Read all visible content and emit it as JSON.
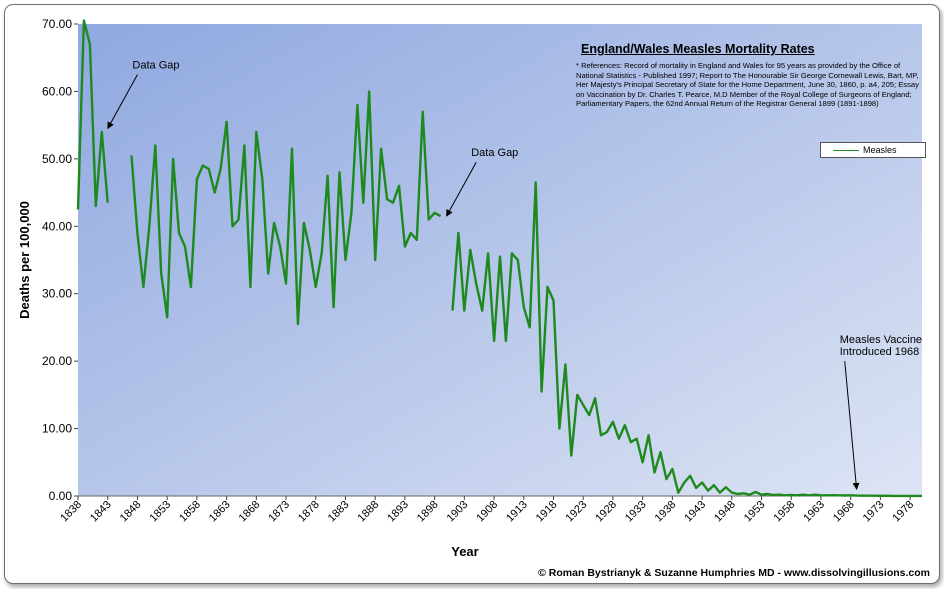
{
  "chart_data": {
    "type": "line",
    "title": "England/Wales Measles Mortality Rates",
    "references": "* References: Record of mortality in England and Wales for 95 years as provided by the Office of National Statistics - Published 1997; Report to The Honourable Sir George Cornewall Lewis, Bart, MP, Her Majesty's Principal Secretary of State for the Home Department, June 30, 1860, p. a4, 205; Essay on Vaccination by Dr. Charles T. Pearce, M.D Member of the Royal College of Surgeons of England; Parliamentary Papers, the 62nd Annual Return of the Registrar General 1899 (1891-1898)",
    "xlabel": "Year",
    "ylabel": "Deaths per 100,000",
    "ylim": [
      0,
      70
    ],
    "xlim": [
      1838,
      1980
    ],
    "y_ticks": [
      "0.00",
      "10.00",
      "20.00",
      "30.00",
      "40.00",
      "50.00",
      "60.00",
      "70.00"
    ],
    "x_ticks": [
      "1838",
      "1843",
      "1848",
      "1853",
      "1858",
      "1863",
      "1868",
      "1873",
      "1878",
      "1883",
      "1888",
      "1893",
      "1898",
      "1903",
      "1908",
      "1913",
      "1918",
      "1923",
      "1928",
      "1933",
      "1938",
      "1943",
      "1948",
      "1953",
      "1958",
      "1963",
      "1968",
      "1973",
      "1978"
    ],
    "grid": false,
    "background": [
      "#8fa8e0",
      "#dde4f4"
    ],
    "legend_position": "top-right",
    "series": [
      {
        "name": "Measles",
        "color": "#1e8a1e",
        "segments": [
          {
            "x": [
              1838,
              1839,
              1840,
              1841,
              1842,
              1843
            ],
            "y": [
              42.5,
              70.5,
              67.0,
              43.0,
              54.0,
              43.5
            ]
          },
          {
            "x": [
              1847,
              1848,
              1849,
              1850,
              1851,
              1852,
              1853,
              1854,
              1855,
              1856,
              1857,
              1858,
              1859,
              1860,
              1861,
              1862,
              1863,
              1864,
              1865,
              1866,
              1867,
              1868,
              1869,
              1870,
              1871,
              1872,
              1873,
              1874,
              1875,
              1876,
              1877,
              1878,
              1879,
              1880,
              1881,
              1882,
              1883,
              1884,
              1885,
              1886,
              1887,
              1888,
              1889,
              1890,
              1891,
              1892,
              1893,
              1894,
              1895,
              1896,
              1897,
              1898,
              1899
            ],
            "y": [
              50.5,
              39.0,
              31.0,
              40.0,
              52.0,
              33.0,
              26.5,
              50.0,
              39.0,
              37.0,
              31.0,
              47.0,
              49.0,
              48.5,
              45.0,
              48.5,
              55.5,
              40.0,
              41.0,
              52.0,
              31.0,
              54.0,
              47.0,
              33.0,
              40.5,
              37.0,
              31.5,
              51.5,
              25.5,
              40.5,
              36.5,
              31.0,
              36.0,
              47.5,
              28.0,
              48.0,
              35.0,
              42.0,
              58.0,
              43.5,
              60.0,
              35.0,
              51.5,
              44.0,
              43.5,
              46.0,
              37.0,
              39.0,
              38.0,
              57.0,
              41.0,
              42.0,
              41.5
            ]
          },
          {
            "x": [
              1901,
              1902,
              1903,
              1904,
              1905,
              1906,
              1907,
              1908,
              1909,
              1910,
              1911,
              1912,
              1913,
              1914,
              1915,
              1916,
              1917,
              1918,
              1919,
              1920,
              1921,
              1922,
              1923,
              1924,
              1925,
              1926,
              1927,
              1928,
              1929,
              1930,
              1931,
              1932,
              1933,
              1934,
              1935,
              1936,
              1937,
              1938,
              1939,
              1940,
              1941,
              1942,
              1943,
              1944,
              1945,
              1946,
              1947,
              1948,
              1949,
              1950,
              1951,
              1952,
              1953,
              1954,
              1955,
              1956,
              1957,
              1958,
              1959,
              1960,
              1961,
              1962,
              1963,
              1964,
              1965,
              1966,
              1967,
              1968,
              1969,
              1970,
              1971,
              1972,
              1973,
              1974,
              1975,
              1976,
              1977,
              1978,
              1979,
              1980
            ],
            "y": [
              27.5,
              39.0,
              27.5,
              36.5,
              31.5,
              27.5,
              36.0,
              23.0,
              35.5,
              23.0,
              36.0,
              35.0,
              28.0,
              25.0,
              46.5,
              15.5,
              31.0,
              29.0,
              10.0,
              19.5,
              6.0,
              15.0,
              13.5,
              12.0,
              14.5,
              9.0,
              9.5,
              11.0,
              8.5,
              10.5,
              8.0,
              8.5,
              5.0,
              9.0,
              3.5,
              6.5,
              2.5,
              4.0,
              0.5,
              2.0,
              3.0,
              1.2,
              2.0,
              0.8,
              1.6,
              0.5,
              1.3,
              0.5,
              0.3,
              0.4,
              0.2,
              0.6,
              0.2,
              0.3,
              0.15,
              0.2,
              0.1,
              0.15,
              0.1,
              0.2,
              0.1,
              0.2,
              0.1,
              0.1,
              0.12,
              0.1,
              0.08,
              0.1,
              0.06,
              0.05,
              0.04,
              0.04,
              0.03,
              0.03,
              0.02,
              0.02,
              0.02,
              0.02,
              0.02,
              0.02
            ]
          }
        ]
      }
    ],
    "annotations": [
      {
        "lines": [
          "Data Gap"
        ],
        "arrow_from": [
          1848,
          62.5
        ],
        "arrow_to": [
          1843,
          54.5
        ]
      },
      {
        "lines": [
          "Data Gap"
        ],
        "arrow_from": [
          1905,
          49.5
        ],
        "arrow_to": [
          1900,
          41.5
        ]
      },
      {
        "lines": [
          "Measles Vaccine",
          "Introduced 1968"
        ],
        "arrow_from": [
          1967,
          20.0
        ],
        "arrow_to": [
          1969,
          1.0
        ]
      }
    ],
    "credit": "© Roman Bystrianyk & Suzanne Humphries MD - www.dissolvingillusions.com"
  }
}
